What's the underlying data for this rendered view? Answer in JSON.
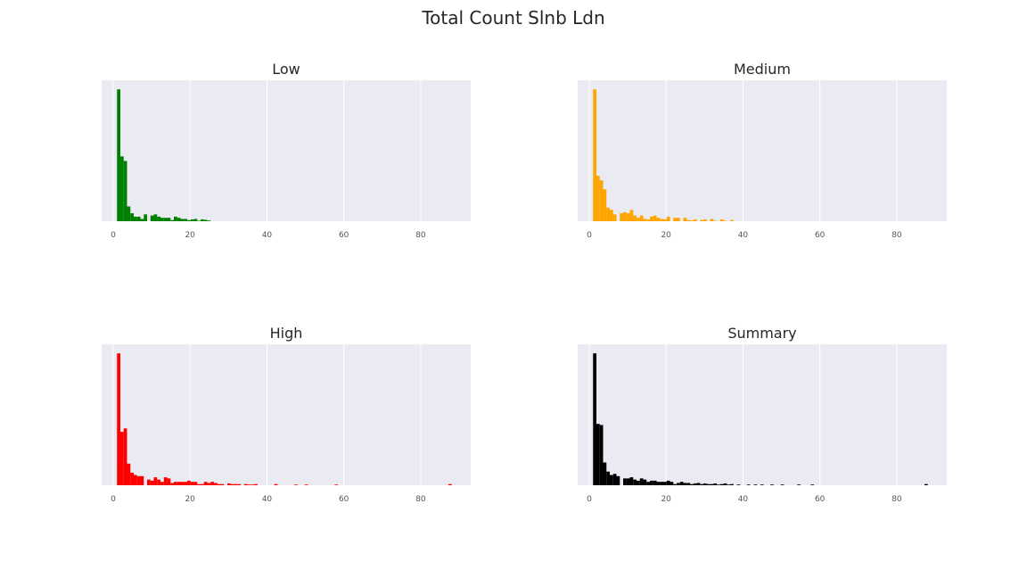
{
  "title": "Total Count Slnb Ldn",
  "chart_data": [
    {
      "type": "bar",
      "title": "Low",
      "color": "#008000",
      "xlim": [
        -3,
        93
      ],
      "xticks": [
        "0",
        "20",
        "40",
        "60",
        "80"
      ],
      "y_ticks_visible": false,
      "grid": "vertical",
      "bin_width": 0.87,
      "x": [
        1.0,
        1.87,
        2.74,
        3.61,
        4.48,
        5.35,
        6.22,
        7.09,
        7.96,
        8.83,
        9.7,
        10.57,
        11.44,
        12.31,
        13.18,
        14.05,
        14.92,
        15.79,
        16.66,
        17.53,
        18.4,
        19.27,
        20.14,
        21.01,
        21.88,
        22.75,
        23.62,
        24.49
      ],
      "values": [
        580,
        285,
        265,
        65,
        35,
        20,
        20,
        10,
        30,
        0,
        25,
        30,
        20,
        15,
        15,
        15,
        5,
        20,
        15,
        10,
        10,
        5,
        8,
        10,
        2,
        8,
        6,
        3
      ],
      "ylim": [
        0,
        620
      ]
    },
    {
      "type": "bar",
      "title": "Medium",
      "color": "#FFA500",
      "xlim": [
        -3,
        93
      ],
      "xticks": [
        "0",
        "20",
        "40",
        "60",
        "80"
      ],
      "y_ticks_visible": false,
      "grid": "vertical",
      "bin_width": 0.87,
      "x": [
        1.0,
        1.87,
        2.74,
        3.61,
        4.48,
        5.35,
        6.22,
        7.09,
        7.96,
        8.83,
        9.7,
        10.57,
        11.44,
        12.31,
        13.18,
        14.05,
        14.92,
        15.79,
        16.66,
        17.53,
        18.4,
        19.27,
        20.14,
        21.01,
        21.88,
        22.75,
        23.62,
        24.49,
        25.36,
        26.23,
        27.1,
        27.97,
        28.84,
        29.71,
        30.58,
        31.45,
        32.32,
        33.19,
        34.06,
        34.93,
        35.8,
        36.67
      ],
      "values": [
        580,
        200,
        180,
        140,
        60,
        50,
        30,
        0,
        35,
        40,
        35,
        50,
        25,
        15,
        25,
        10,
        8,
        20,
        25,
        15,
        10,
        8,
        20,
        0,
        15,
        15,
        0,
        15,
        5,
        3,
        8,
        0,
        5,
        8,
        0,
        10,
        2,
        0,
        8,
        2,
        0,
        5
      ],
      "ylim": [
        0,
        620
      ]
    },
    {
      "type": "bar",
      "title": "High",
      "color": "#FF0000",
      "xlim": [
        -3,
        93
      ],
      "xticks": [
        "0",
        "20",
        "40",
        "60",
        "80"
      ],
      "y_ticks_visible": false,
      "grid": "vertical",
      "bin_width": 0.87,
      "x": [
        1.0,
        1.87,
        2.74,
        3.61,
        4.48,
        5.35,
        6.22,
        7.09,
        7.96,
        8.83,
        9.7,
        10.57,
        11.44,
        12.31,
        13.18,
        14.05,
        14.92,
        15.79,
        16.66,
        17.53,
        18.4,
        19.27,
        20.14,
        21.01,
        21.88,
        22.75,
        23.62,
        24.49,
        25.36,
        26.23,
        27.1,
        27.97,
        28.84,
        29.71,
        30.58,
        31.45,
        32.32,
        33.19,
        34.06,
        34.93,
        35.8,
        36.67,
        41.9,
        47.1,
        49.8,
        57.6,
        87.2
      ],
      "values": [
        580,
        235,
        250,
        95,
        55,
        45,
        40,
        40,
        0,
        25,
        20,
        35,
        25,
        15,
        35,
        30,
        10,
        15,
        15,
        15,
        15,
        20,
        15,
        15,
        5,
        5,
        15,
        10,
        15,
        10,
        5,
        5,
        0,
        8,
        5,
        5,
        5,
        0,
        5,
        3,
        3,
        5,
        5,
        3,
        3,
        3,
        5
      ],
      "ylim": [
        0,
        620
      ]
    },
    {
      "type": "bar",
      "title": "Summary",
      "color": "#000000",
      "xlim": [
        -3,
        93
      ],
      "xticks": [
        "0",
        "20",
        "40",
        "60",
        "80"
      ],
      "y_ticks_visible": false,
      "grid": "vertical",
      "bin_width": 0.87,
      "x": [
        1.0,
        1.87,
        2.74,
        3.61,
        4.48,
        5.35,
        6.22,
        7.09,
        7.96,
        8.83,
        9.7,
        10.57,
        11.44,
        12.31,
        13.18,
        14.05,
        14.92,
        15.79,
        16.66,
        17.53,
        18.4,
        19.27,
        20.14,
        21.01,
        21.88,
        22.75,
        23.62,
        24.49,
        25.36,
        26.23,
        27.1,
        27.97,
        28.84,
        29.71,
        30.58,
        31.45,
        32.32,
        33.19,
        34.06,
        34.93,
        35.8,
        36.67,
        38.4,
        41.0,
        42.8,
        44.5,
        47.1,
        49.8,
        54.1,
        57.6,
        87.2
      ],
      "values": [
        580,
        270,
        265,
        100,
        60,
        45,
        50,
        40,
        0,
        30,
        30,
        35,
        25,
        20,
        30,
        25,
        15,
        20,
        20,
        15,
        15,
        15,
        20,
        15,
        5,
        10,
        15,
        10,
        10,
        5,
        8,
        10,
        5,
        8,
        5,
        5,
        8,
        3,
        5,
        8,
        3,
        5,
        3,
        3,
        3,
        3,
        3,
        3,
        3,
        3,
        5
      ],
      "ylim": [
        0,
        620
      ]
    }
  ]
}
